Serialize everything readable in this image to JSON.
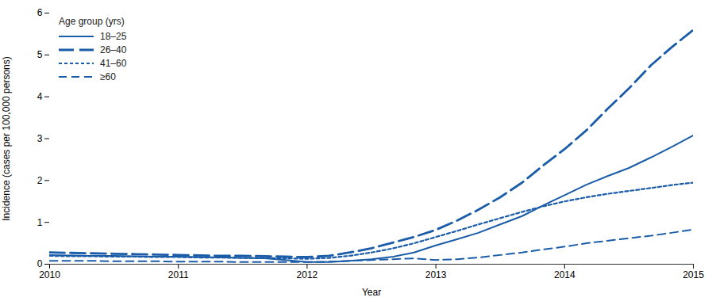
{
  "chart_data": {
    "type": "line",
    "xlabel": "Year",
    "ylabel": "Incidence (cases per 100,000 persons)",
    "legend_title": "Age group (yrs)",
    "x": [
      2010.0,
      2010.17,
      2010.33,
      2010.5,
      2010.67,
      2010.83,
      2011.0,
      2011.17,
      2011.33,
      2011.5,
      2011.67,
      2011.83,
      2012.0,
      2012.17,
      2012.33,
      2012.5,
      2012.67,
      2012.83,
      2013.0,
      2013.17,
      2013.33,
      2013.5,
      2013.67,
      2013.83,
      2014.0,
      2014.17,
      2014.33,
      2014.5,
      2014.67,
      2014.83,
      2015.0
    ],
    "series": [
      {
        "name": "18–25",
        "color": "#1a5ca8",
        "line_style": "solid",
        "values": [
          0.22,
          0.21,
          0.2,
          0.2,
          0.19,
          0.18,
          0.18,
          0.17,
          0.16,
          0.15,
          0.14,
          0.1,
          0.05,
          0.05,
          0.08,
          0.12,
          0.18,
          0.28,
          0.45,
          0.6,
          0.75,
          0.95,
          1.15,
          1.4,
          1.65,
          1.9,
          2.1,
          2.3,
          2.55,
          2.8,
          3.08
        ]
      },
      {
        "name": "26–40",
        "color": "#1a5ca8",
        "line_style": "long_dash",
        "values": [
          0.28,
          0.27,
          0.26,
          0.25,
          0.24,
          0.23,
          0.22,
          0.21,
          0.2,
          0.2,
          0.19,
          0.18,
          0.17,
          0.2,
          0.28,
          0.38,
          0.52,
          0.65,
          0.82,
          1.05,
          1.3,
          1.6,
          1.95,
          2.35,
          2.75,
          3.2,
          3.7,
          4.2,
          4.75,
          5.18,
          5.6
        ]
      },
      {
        "name": "41–60",
        "color": "#1a5ca8",
        "line_style": "dotted",
        "values": [
          0.2,
          0.19,
          0.19,
          0.18,
          0.18,
          0.17,
          0.17,
          0.16,
          0.16,
          0.15,
          0.15,
          0.14,
          0.13,
          0.15,
          0.2,
          0.28,
          0.38,
          0.5,
          0.65,
          0.8,
          0.95,
          1.1,
          1.25,
          1.38,
          1.5,
          1.6,
          1.68,
          1.75,
          1.82,
          1.89,
          1.95
        ]
      },
      {
        "name": "≥60",
        "color": "#1a5ca8",
        "line_style": "dashed",
        "values": [
          0.08,
          0.08,
          0.08,
          0.07,
          0.07,
          0.07,
          0.06,
          0.06,
          0.06,
          0.05,
          0.05,
          0.05,
          0.05,
          0.06,
          0.08,
          0.1,
          0.12,
          0.14,
          0.1,
          0.12,
          0.16,
          0.22,
          0.28,
          0.35,
          0.42,
          0.5,
          0.56,
          0.62,
          0.68,
          0.75,
          0.83
        ]
      }
    ],
    "xlim": [
      2010,
      2015
    ],
    "xticks": [
      2010,
      2011,
      2012,
      2013,
      2014,
      2015
    ],
    "ylim": [
      0,
      6
    ],
    "yticks": [
      0,
      1,
      2,
      3,
      4,
      5,
      6
    ],
    "grid": false,
    "legend": "upper left"
  }
}
